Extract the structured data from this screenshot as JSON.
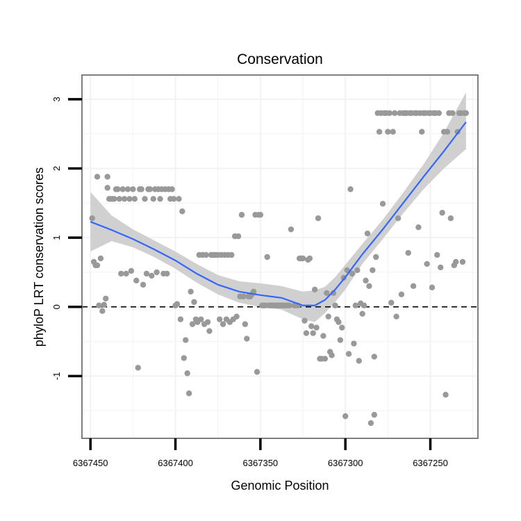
{
  "chart_data": {
    "type": "scatter",
    "title": "Conservation",
    "xlabel": "Genomic Position",
    "ylabel": "phyloP LRT conservation scores",
    "xlim": [
      6367455,
      6367222
    ],
    "ylim": [
      -1.9,
      3.35
    ],
    "x_reversed": true,
    "x_ticks": [
      6367450,
      6367400,
      6367350,
      6367300,
      6367250
    ],
    "x_tick_labels": [
      "6367450",
      "6367400",
      "6367350",
      "6367300",
      "6367250"
    ],
    "y_ticks": [
      -1,
      0,
      1,
      2,
      3
    ],
    "y_tick_labels": [
      "-1",
      "0",
      "1",
      "2",
      "3"
    ],
    "grid": true,
    "reference_line": {
      "y": 0,
      "style": "dashed",
      "color": "#000000"
    },
    "colors": {
      "points": "#999999",
      "smooth": "#3366ff",
      "ribbon": "#d0d0d0",
      "border": "#7f7f7f",
      "grid": "#f2f2f2"
    },
    "points": [
      [
        6367449,
        1.28
      ],
      [
        6367448,
        0.65
      ],
      [
        6367447,
        0.6
      ],
      [
        6367446,
        1.88
      ],
      [
        6367446,
        0.6
      ],
      [
        6367445,
        0.02
      ],
      [
        6367444,
        0.7
      ],
      [
        6367443,
        -0.06
      ],
      [
        6367442,
        0.03
      ],
      [
        6367441,
        0.12
      ],
      [
        6367440,
        1.72
      ],
      [
        6367440,
        1.88
      ],
      [
        6367439,
        1.56
      ],
      [
        6367438,
        1.56
      ],
      [
        6367437,
        1.56
      ],
      [
        6367436,
        1.56
      ],
      [
        6367435,
        1.7
      ],
      [
        6367434,
        1.7
      ],
      [
        6367433,
        1.56
      ],
      [
        6367432,
        0.48
      ],
      [
        6367431,
        1.7
      ],
      [
        6367430,
        1.56
      ],
      [
        6367429,
        0.48
      ],
      [
        6367428,
        1.7
      ],
      [
        6367427,
        1.56
      ],
      [
        6367426,
        0.52
      ],
      [
        6367425,
        1.7
      ],
      [
        6367424,
        1.56
      ],
      [
        6367423,
        0.38
      ],
      [
        6367422,
        -0.88
      ],
      [
        6367421,
        1.7
      ],
      [
        6367420,
        1.7
      ],
      [
        6367419,
        0.32
      ],
      [
        6367418,
        1.56
      ],
      [
        6367417,
        0.48
      ],
      [
        6367416,
        1.7
      ],
      [
        6367415,
        1.7
      ],
      [
        6367414,
        0.45
      ],
      [
        6367413,
        1.56
      ],
      [
        6367412,
        1.7
      ],
      [
        6367411,
        0.5
      ],
      [
        6367410,
        1.7
      ],
      [
        6367409,
        1.56
      ],
      [
        6367408,
        1.7
      ],
      [
        6367407,
        0.48
      ],
      [
        6367406,
        1.7
      ],
      [
        6367405,
        0.48
      ],
      [
        6367404,
        1.7
      ],
      [
        6367403,
        1.56
      ],
      [
        6367402,
        1.7
      ],
      [
        6367401,
        1.56
      ],
      [
        6367400,
        0.02
      ],
      [
        6367399,
        0.04
      ],
      [
        6367398,
        1.56
      ],
      [
        6367397,
        -0.18
      ],
      [
        6367396,
        1.38
      ],
      [
        6367395,
        -0.74
      ],
      [
        6367394,
        -0.48
      ],
      [
        6367393,
        -0.96
      ],
      [
        6367392,
        -1.25
      ],
      [
        6367391,
        0.22
      ],
      [
        6367390,
        -0.25
      ],
      [
        6367389,
        0.07
      ],
      [
        6367388,
        -0.18
      ],
      [
        6367387,
        -0.22
      ],
      [
        6367386,
        0.75
      ],
      [
        6367385,
        -0.18
      ],
      [
        6367384,
        0.75
      ],
      [
        6367383,
        -0.25
      ],
      [
        6367382,
        0.75
      ],
      [
        6367381,
        -0.22
      ],
      [
        6367380,
        -0.35
      ],
      [
        6367379,
        0.75
      ],
      [
        6367378,
        0.75
      ],
      [
        6367377,
        0.75
      ],
      [
        6367376,
        0.75
      ],
      [
        6367375,
        0.75
      ],
      [
        6367374,
        -0.18
      ],
      [
        6367373,
        0.75
      ],
      [
        6367372,
        -0.25
      ],
      [
        6367371,
        0.75
      ],
      [
        6367370,
        -0.18
      ],
      [
        6367369,
        0.75
      ],
      [
        6367368,
        -0.22
      ],
      [
        6367367,
        0.75
      ],
      [
        6367366,
        -0.18
      ],
      [
        6367365,
        1.02
      ],
      [
        6367364,
        -0.14
      ],
      [
        6367363,
        1.02
      ],
      [
        6367362,
        0.15
      ],
      [
        6367361,
        1.33
      ],
      [
        6367360,
        0.15
      ],
      [
        6367359,
        -0.25
      ],
      [
        6367358,
        -0.46
      ],
      [
        6367357,
        0.15
      ],
      [
        6367356,
        0.15
      ],
      [
        6367355,
        0.18
      ],
      [
        6367354,
        0.22
      ],
      [
        6367353,
        1.33
      ],
      [
        6367352,
        -0.94
      ],
      [
        6367351,
        1.33
      ],
      [
        6367350,
        1.33
      ],
      [
        6367349,
        0.02
      ],
      [
        6367348,
        0.02
      ],
      [
        6367347,
        0.02
      ],
      [
        6367346,
        0.72
      ],
      [
        6367345,
        0.02
      ],
      [
        6367344,
        0.02
      ],
      [
        6367343,
        0.02
      ],
      [
        6367342,
        0.02
      ],
      [
        6367341,
        0.02
      ],
      [
        6367340,
        0.02
      ],
      [
        6367339,
        0.02
      ],
      [
        6367338,
        0.02
      ],
      [
        6367337,
        0.02
      ],
      [
        6367336,
        0.02
      ],
      [
        6367335,
        0.02
      ],
      [
        6367334,
        0.02
      ],
      [
        6367333,
        0.02
      ],
      [
        6367332,
        1.12
      ],
      [
        6367330,
        0.02
      ],
      [
        6367329,
        0.02
      ],
      [
        6367328,
        0.02
      ],
      [
        6367327,
        0.7
      ],
      [
        6367326,
        0.7
      ],
      [
        6367325,
        0.7
      ],
      [
        6367324,
        -0.2
      ],
      [
        6367323,
        -0.38
      ],
      [
        6367322,
        0.68
      ],
      [
        6367321,
        0.7
      ],
      [
        6367320,
        -0.28
      ],
      [
        6367319,
        -0.38
      ],
      [
        6367318,
        0.25
      ],
      [
        6367317,
        -0.3
      ],
      [
        6367316,
        1.28
      ],
      [
        6367315,
        -0.75
      ],
      [
        6367314,
        -0.75
      ],
      [
        6367313,
        -0.42
      ],
      [
        6367312,
        -0.75
      ],
      [
        6367311,
        0.2
      ],
      [
        6367310,
        -0.14
      ],
      [
        6367309,
        -0.65
      ],
      [
        6367308,
        -0.7
      ],
      [
        6367307,
        0.2
      ],
      [
        6367306,
        0.02
      ],
      [
        6367305,
        -0.18
      ],
      [
        6367304,
        -0.22
      ],
      [
        6367303,
        -0.48
      ],
      [
        6367302,
        -0.3
      ],
      [
        6367301,
        0.42
      ],
      [
        6367300,
        -1.58
      ],
      [
        6367299,
        0.53
      ],
      [
        6367298,
        -0.68
      ],
      [
        6367297,
        1.7
      ],
      [
        6367296,
        0.48
      ],
      [
        6367295,
        -0.53
      ],
      [
        6367294,
        0.02
      ],
      [
        6367293,
        0.53
      ],
      [
        6367292,
        -0.78
      ],
      [
        6367291,
        0.05
      ],
      [
        6367290,
        -0.1
      ],
      [
        6367289,
        0.02
      ],
      [
        6367288,
        0.38
      ],
      [
        6367287,
        1.06
      ],
      [
        6367286,
        0.3
      ],
      [
        6367285,
        -1.68
      ],
      [
        6367284,
        0.53
      ],
      [
        6367283,
        -1.56
      ],
      [
        6367283,
        -0.72
      ],
      [
        6367282,
        0.72
      ],
      [
        6367281,
        2.8
      ],
      [
        6367280,
        2.53
      ],
      [
        6367279,
        2.8
      ],
      [
        6367278,
        1.49
      ],
      [
        6367277,
        2.8
      ],
      [
        6367276,
        2.8
      ],
      [
        6367275,
        2.53
      ],
      [
        6367274,
        2.8
      ],
      [
        6367273,
        0.06
      ],
      [
        6367272,
        2.53
      ],
      [
        6367271,
        2.8
      ],
      [
        6367270,
        -0.14
      ],
      [
        6367269,
        1.28
      ],
      [
        6367268,
        2.8
      ],
      [
        6367267,
        0.18
      ],
      [
        6367266,
        2.8
      ],
      [
        6367265,
        2.8
      ],
      [
        6367264,
        2.8
      ],
      [
        6367263,
        0.78
      ],
      [
        6367262,
        2.8
      ],
      [
        6367261,
        2.8
      ],
      [
        6367260,
        0.3
      ],
      [
        6367259,
        2.8
      ],
      [
        6367258,
        2.8
      ],
      [
        6367257,
        1.15
      ],
      [
        6367256,
        2.8
      ],
      [
        6367255,
        2.53
      ],
      [
        6367254,
        2.8
      ],
      [
        6367253,
        2.8
      ],
      [
        6367252,
        0.62
      ],
      [
        6367251,
        2.8
      ],
      [
        6367250,
        2.8
      ],
      [
        6367249,
        0.28
      ],
      [
        6367248,
        2.8
      ],
      [
        6367247,
        2.8
      ],
      [
        6367246,
        0.75
      ],
      [
        6367245,
        2.8
      ],
      [
        6367244,
        0.57
      ],
      [
        6367243,
        1.36
      ],
      [
        6367242,
        2.53
      ],
      [
        6367241,
        -1.27
      ],
      [
        6367240,
        2.53
      ],
      [
        6367239,
        2.8
      ],
      [
        6367238,
        1.28
      ],
      [
        6367237,
        2.8
      ],
      [
        6367236,
        0.6
      ],
      [
        6367235,
        0.65
      ],
      [
        6367234,
        2.53
      ],
      [
        6367233,
        2.8
      ],
      [
        6367232,
        2.8
      ],
      [
        6367231,
        0.65
      ],
      [
        6367230,
        2.8
      ],
      [
        6367229,
        2.8
      ]
    ],
    "smooth": {
      "x": [
        6367450,
        6367437.5,
        6367425,
        6367412.5,
        6367400,
        6367387.5,
        6367375,
        6367362.5,
        6367350,
        6367337.5,
        6367325,
        6367318,
        6367312,
        6367306,
        6367300,
        6367290,
        6367278,
        6367266,
        6367254,
        6367242,
        6367229
      ],
      "y": [
        1.23,
        1.11,
        0.98,
        0.83,
        0.67,
        0.48,
        0.32,
        0.22,
        0.17,
        0.13,
        0.02,
        0.02,
        0.1,
        0.25,
        0.43,
        0.76,
        1.12,
        1.5,
        1.88,
        2.25,
        2.67
      ],
      "lower": [
        0.8,
        0.95,
        0.86,
        0.72,
        0.55,
        0.35,
        0.18,
        0.06,
        0.0,
        -0.04,
        -0.18,
        -0.22,
        -0.09,
        0.07,
        0.25,
        0.62,
        0.98,
        1.35,
        1.7,
        2.0,
        2.28
      ],
      "upper": [
        1.66,
        1.32,
        1.12,
        0.96,
        0.8,
        0.62,
        0.46,
        0.37,
        0.34,
        0.3,
        0.22,
        0.24,
        0.29,
        0.43,
        0.61,
        0.91,
        1.26,
        1.65,
        2.06,
        2.52,
        3.1
      ]
    }
  }
}
